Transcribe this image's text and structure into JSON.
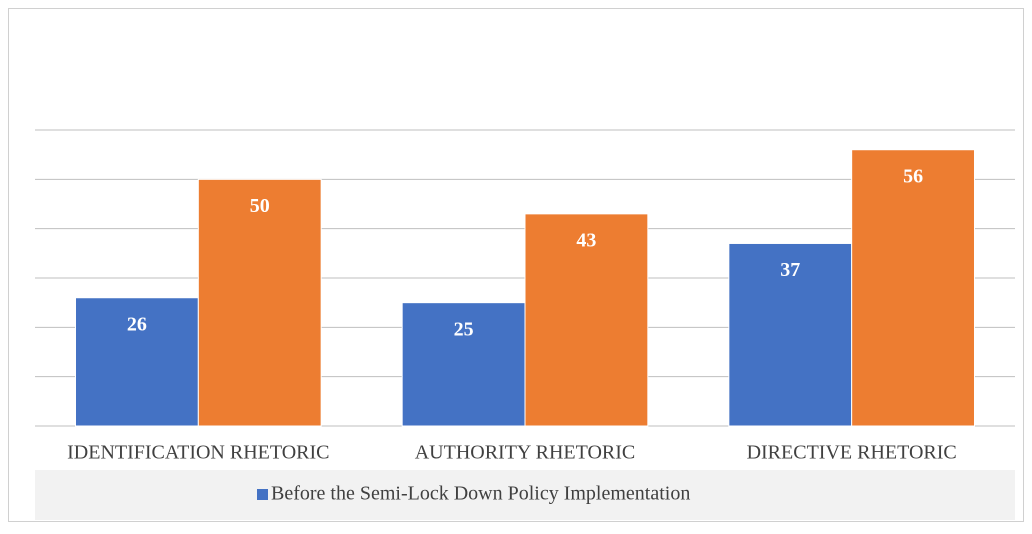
{
  "chart_data": {
    "type": "bar",
    "categories": [
      "IDENTIFICATION RHETORIC",
      "AUTHORITY RHETORIC",
      "DIRECTIVE RHETORIC"
    ],
    "series": [
      {
        "name": "Before the Semi-Lock Down Policy Implementation",
        "color": "#4472c4",
        "values": [
          26,
          25,
          37
        ]
      },
      {
        "color": "#ed7d31",
        "values": [
          50,
          43,
          56
        ]
      }
    ],
    "ylim": [
      0,
      60
    ],
    "yticks": [
      0,
      10,
      20,
      30,
      40,
      50,
      60
    ],
    "grid": true
  }
}
